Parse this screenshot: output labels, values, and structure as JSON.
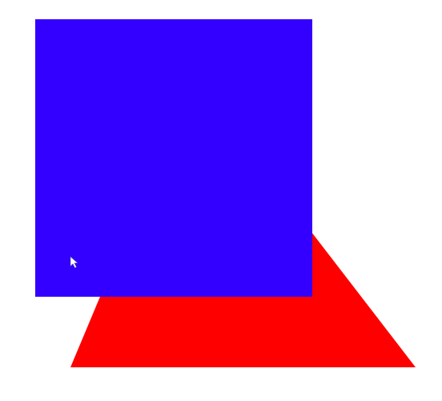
{
  "scene": {
    "background_color": "#ffffff",
    "shapes": [
      {
        "kind": "triangle",
        "color": "#ff0000"
      },
      {
        "kind": "square",
        "color": "#3300ff"
      }
    ],
    "cursor": {
      "icon": "mouse-pointer-icon",
      "color": "#ffffff"
    }
  }
}
